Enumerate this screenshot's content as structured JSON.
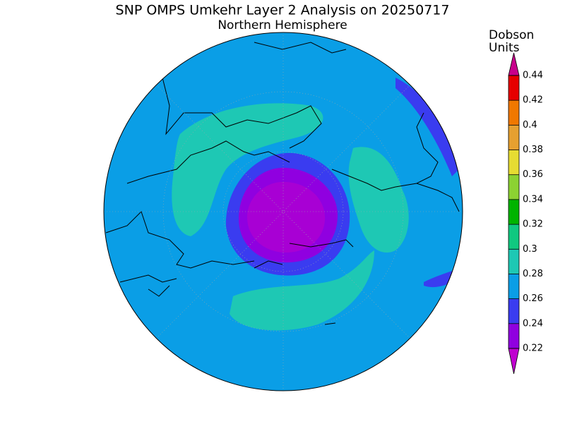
{
  "title": "SNP OMPS Umkehr Layer 2 Analysis on 20250717",
  "subtitle": "Northern Hemisphere",
  "colorbar": {
    "label": [
      "Dobson",
      "Units"
    ],
    "ticks": [
      0.22,
      0.24,
      0.26,
      0.28,
      0.3,
      0.32,
      0.34,
      0.36,
      0.38,
      0.4,
      0.42,
      0.44
    ],
    "colors": [
      "#c000d0",
      "#9000e0",
      "#3a3cf0",
      "#0a9ee6",
      "#1ec8b4",
      "#10c880",
      "#00b400",
      "#8cd232",
      "#e6dc32",
      "#e6a030",
      "#f07800",
      "#e60000",
      "#c8008c"
    ]
  }
}
